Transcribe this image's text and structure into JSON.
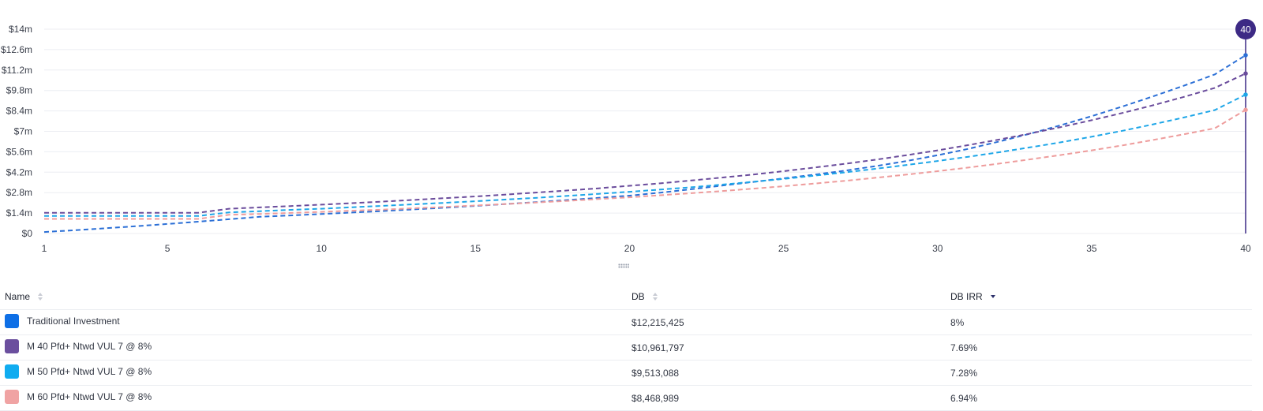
{
  "chart_data": {
    "type": "line",
    "x": [
      1,
      2,
      3,
      4,
      5,
      6,
      7,
      8,
      9,
      10,
      11,
      12,
      13,
      14,
      15,
      16,
      17,
      18,
      19,
      20,
      21,
      22,
      23,
      24,
      25,
      26,
      27,
      28,
      29,
      30,
      31,
      32,
      33,
      34,
      35,
      36,
      37,
      38,
      39,
      40
    ],
    "xticks": [
      1,
      5,
      10,
      15,
      20,
      25,
      30,
      35,
      40
    ],
    "ylim": [
      0,
      14000000
    ],
    "yticks": [
      {
        "value": 0,
        "label": "$0"
      },
      {
        "value": 1400000,
        "label": "$1.4m"
      },
      {
        "value": 2800000,
        "label": "$2.8m"
      },
      {
        "value": 4200000,
        "label": "$4.2m"
      },
      {
        "value": 5600000,
        "label": "$5.6m"
      },
      {
        "value": 7000000,
        "label": "$7m"
      },
      {
        "value": 8400000,
        "label": "$8.4m"
      },
      {
        "value": 9800000,
        "label": "$9.8m"
      },
      {
        "value": 11200000,
        "label": "$11.2m"
      },
      {
        "value": 12600000,
        "label": "$12.6m"
      },
      {
        "value": 14000000,
        "label": "$14m"
      }
    ],
    "grid": true,
    "line_style": "dashed",
    "marker": {
      "x": 40,
      "label": "40",
      "color": "#3d2a85"
    },
    "series": [
      {
        "name": "Traditional Investment",
        "color": "#2b6fd6",
        "values": [
          100000,
          227000,
          361000,
          504000,
          654000,
          813000,
          981000,
          1145000,
          1237000,
          1334000,
          1436000,
          1542000,
          1653000,
          1770000,
          1892000,
          2021000,
          2155000,
          2296000,
          2443000,
          2597000,
          2800000,
          3030000,
          3280000,
          3530000,
          3780000,
          4030000,
          4310000,
          4620000,
          4970000,
          5360000,
          5800000,
          6300000,
          6840000,
          7420000,
          8040000,
          8700000,
          9400000,
          10130000,
          10900000,
          12215425
        ]
      },
      {
        "name": "M 40 Pfd+ Ntwd VUL 7 @ 8%",
        "color": "#6a4c9c",
        "values": [
          1420000,
          1420000,
          1420000,
          1420000,
          1420000,
          1420000,
          1700000,
          1790000,
          1880000,
          1980000,
          2080000,
          2190000,
          2300000,
          2420000,
          2540000,
          2670000,
          2810000,
          2950000,
          3100000,
          3270000,
          3440000,
          3630000,
          3830000,
          4040000,
          4270000,
          4520000,
          4780000,
          5060000,
          5370000,
          5700000,
          6060000,
          6440000,
          6850000,
          7290000,
          7760000,
          8260000,
          8790000,
          9360000,
          9980000,
          10961797
        ]
      },
      {
        "name": "M 50 Pfd+ Ntwd VUL 7 @ 8%",
        "color": "#1da6e8",
        "values": [
          1200000,
          1200000,
          1200000,
          1200000,
          1200000,
          1200000,
          1450000,
          1530000,
          1620000,
          1700000,
          1800000,
          1900000,
          2000000,
          2100000,
          2210000,
          2330000,
          2450000,
          2580000,
          2720000,
          2860000,
          3010000,
          3170000,
          3350000,
          3540000,
          3740000,
          3960000,
          4190000,
          4440000,
          4700000,
          4970000,
          5260000,
          5570000,
          5900000,
          6250000,
          6630000,
          7040000,
          7480000,
          7950000,
          8460000,
          9513088
        ]
      },
      {
        "name": "M 60 Pfd+ Ntwd VUL 7 @ 8%",
        "color": "#ee9c9c",
        "values": [
          1000000,
          1000000,
          1000000,
          1000000,
          1000000,
          1000000,
          1280000,
          1340000,
          1410000,
          1480000,
          1560000,
          1640000,
          1730000,
          1820000,
          1920000,
          2020000,
          2130000,
          2240000,
          2360000,
          2480000,
          2620000,
          2760000,
          2910000,
          3070000,
          3240000,
          3420000,
          3610000,
          3820000,
          4040000,
          4270000,
          4520000,
          4790000,
          5080000,
          5380000,
          5700000,
          6040000,
          6410000,
          6800000,
          7210000,
          8468989
        ]
      }
    ]
  },
  "table": {
    "headers": {
      "name": "Name",
      "db": "DB",
      "irr": "DB IRR"
    },
    "rows": [
      {
        "name": "Traditional Investment",
        "db": "$12,215,425",
        "irr": "8%",
        "color": "#0e6fe6"
      },
      {
        "name": "M 40 Pfd+ Ntwd VUL 7 @ 8%",
        "db": "$10,961,797",
        "irr": "7.69%",
        "color": "#6b4f9e"
      },
      {
        "name": "M 50 Pfd+ Ntwd VUL 7 @ 8%",
        "db": "$9,513,088",
        "irr": "7.28%",
        "color": "#10acf0"
      },
      {
        "name": "M 60 Pfd+ Ntwd VUL 7 @ 8%",
        "db": "$8,468,989",
        "irr": "6.94%",
        "color": "#f0a3a3"
      }
    ]
  }
}
